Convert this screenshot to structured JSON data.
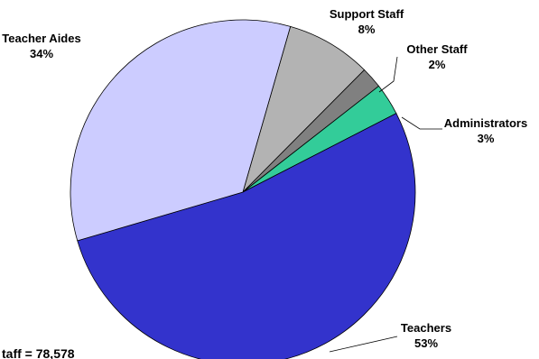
{
  "chart_data": {
    "type": "pie",
    "categories": [
      "Support Staff",
      "Other Staff",
      "Administrators",
      "Teachers",
      "Teacher Aides"
    ],
    "values": [
      8,
      2,
      3,
      53,
      34
    ],
    "value_labels": [
      "8%",
      "2%",
      "3%",
      "53%",
      "34%"
    ],
    "colors": [
      "#b3b3b3",
      "#808080",
      "#33cc99",
      "#3333cc",
      "#ccccff"
    ],
    "footnote": "taff = 78,578"
  }
}
